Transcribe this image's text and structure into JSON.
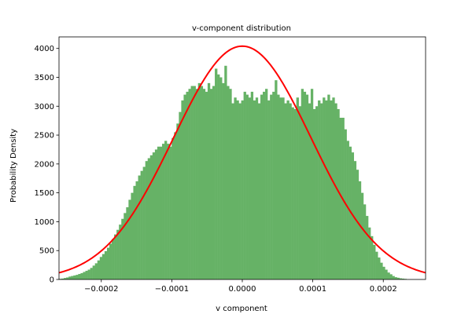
{
  "chart_data": {
    "type": "bar",
    "title": "v-component distribution",
    "xlabel": "v component",
    "ylabel": "Probability Density",
    "xlim": [
      -0.00026,
      0.00026
    ],
    "ylim": [
      0,
      4200
    ],
    "grid": false,
    "legend": "none",
    "x_ticks": [
      {
        "value": -0.0002,
        "label": "−0.0002"
      },
      {
        "value": -0.0001,
        "label": "−0.0001"
      },
      {
        "value": 0,
        "label": "0.0000"
      },
      {
        "value": 0.0001,
        "label": "0.0001"
      },
      {
        "value": 0.0002,
        "label": "0.0002"
      }
    ],
    "y_ticks": [
      {
        "value": 0,
        "label": "0"
      },
      {
        "value": 500,
        "label": "500"
      },
      {
        "value": 1000,
        "label": "1000"
      },
      {
        "value": 1500,
        "label": "1500"
      },
      {
        "value": 2000,
        "label": "2000"
      },
      {
        "value": 2500,
        "label": "2500"
      },
      {
        "value": 3000,
        "label": "3000"
      },
      {
        "value": 3500,
        "label": "3500"
      },
      {
        "value": 4000,
        "label": "4000"
      }
    ],
    "histogram": {
      "name": "",
      "color": "#66b266",
      "bin_start": -0.00026,
      "bin_width": 3.4e-06,
      "values": [
        10,
        15,
        25,
        35,
        50,
        60,
        70,
        80,
        95,
        110,
        130,
        150,
        170,
        200,
        240,
        280,
        330,
        390,
        440,
        490,
        550,
        620,
        700,
        780,
        860,
        950,
        1050,
        1150,
        1250,
        1380,
        1500,
        1620,
        1700,
        1800,
        1880,
        1950,
        2050,
        2100,
        2150,
        2200,
        2250,
        2300,
        2300,
        2350,
        2400,
        2350,
        2300,
        2450,
        2550,
        2700,
        2900,
        3100,
        3200,
        3250,
        3300,
        3350,
        3350,
        3300,
        3400,
        3350,
        3300,
        3250,
        3400,
        3300,
        3350,
        3650,
        3550,
        3500,
        3400,
        3700,
        3350,
        3300,
        3050,
        3150,
        3100,
        3050,
        3100,
        3250,
        3200,
        3150,
        3250,
        3100,
        3150,
        3050,
        3200,
        3250,
        3300,
        3100,
        3200,
        3250,
        3450,
        3200,
        3150,
        3150,
        3050,
        3100,
        3050,
        2980,
        2950,
        3150,
        3000,
        3300,
        3250,
        3200,
        3050,
        3300,
        2950,
        3000,
        3100,
        3050,
        3150,
        3100,
        3200,
        3100,
        3150,
        3050,
        2950,
        2800,
        2800,
        2600,
        2400,
        2300,
        2200,
        2050,
        1900,
        1700,
        1500,
        1300,
        1100,
        900,
        750,
        600,
        480,
        380,
        290,
        220,
        170,
        120,
        90,
        60,
        40,
        30,
        20,
        15,
        10
      ]
    },
    "series": [
      {
        "name": "",
        "type": "line",
        "color": "#ff0000",
        "function": "gaussian",
        "amplitude": 4040,
        "mean": 0.0,
        "sigma": 9.76e-05
      }
    ]
  }
}
